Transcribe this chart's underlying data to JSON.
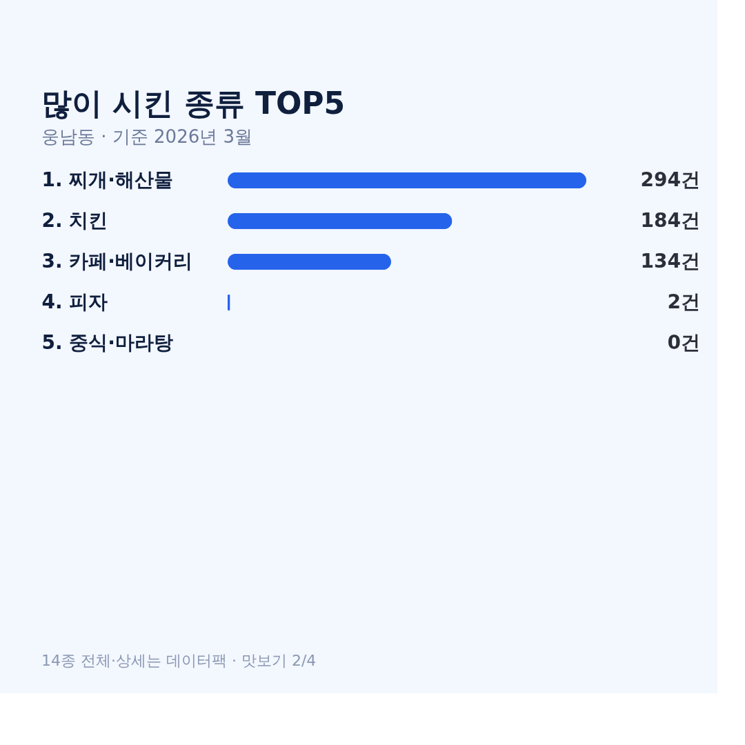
{
  "chart_data": {
    "type": "bar",
    "orientation": "horizontal",
    "title": "많이 시킨 종류 TOP5",
    "subtitle": "웅남동 · 기준 2026년 3월",
    "categories": [
      "1. 찌개·해산물",
      "2. 치킨",
      "3. 카페·베이커리",
      "4. 피자",
      "5. 중식·마라탕"
    ],
    "values": [
      294,
      184,
      134,
      2,
      0
    ],
    "value_labels": [
      "294건",
      "184건",
      "134건",
      "2건",
      "0건"
    ],
    "color": "#2563eb",
    "annotations": [
      "14종 전체·상세는 데이터팩 · 맛보기 2/4"
    ]
  }
}
